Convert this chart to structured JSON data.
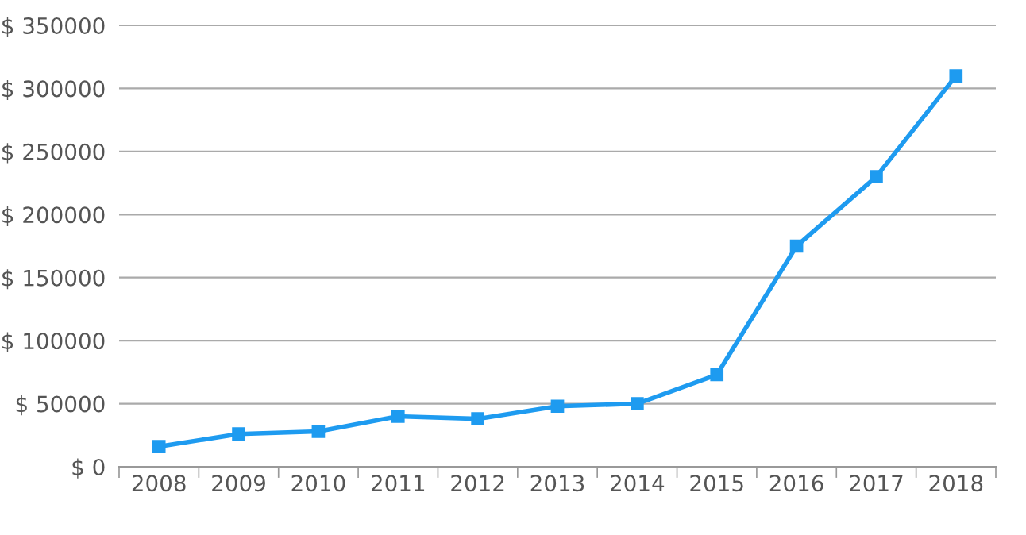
{
  "chart_data": {
    "type": "line",
    "categories": [
      "2008",
      "2009",
      "2010",
      "2011",
      "2012",
      "2013",
      "2014",
      "2015",
      "2016",
      "2017",
      "2018"
    ],
    "series": [
      {
        "color": "#1e9bf0",
        "values": [
          16000,
          26000,
          28000,
          40000,
          38000,
          48000,
          50000,
          73000,
          175000,
          230000,
          310000
        ]
      }
    ],
    "ylim": [
      0,
      350000
    ],
    "yticks": [
      {
        "value": 0,
        "label": "$ 0"
      },
      {
        "value": 50000,
        "label": "$ 50000"
      },
      {
        "value": 100000,
        "label": "$ 100000"
      },
      {
        "value": 150000,
        "label": "$ 150000"
      },
      {
        "value": 200000,
        "label": "$ 200000"
      },
      {
        "value": 250000,
        "label": "$ 250000"
      },
      {
        "value": 300000,
        "label": "$ 300000"
      },
      {
        "value": 350000,
        "label": "$ 350000"
      }
    ],
    "grid": "y",
    "marker": "square",
    "line_style": "solid"
  }
}
